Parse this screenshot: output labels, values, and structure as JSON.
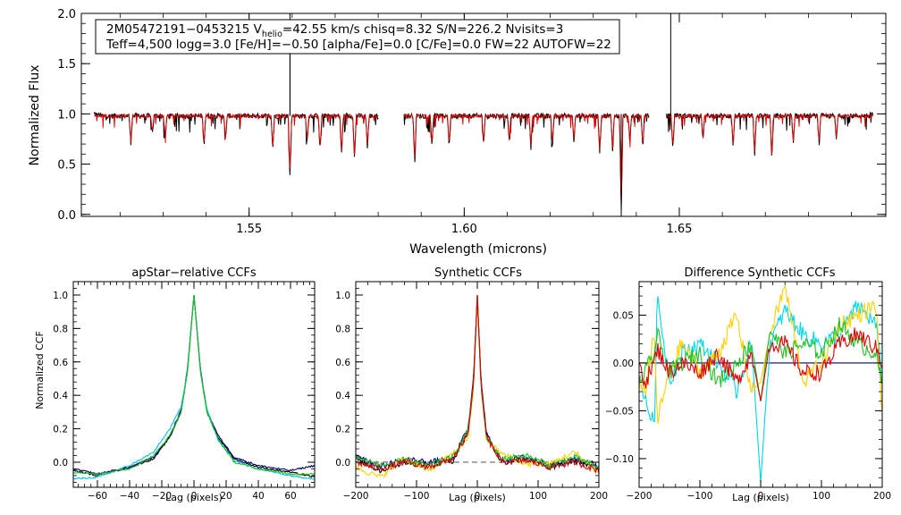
{
  "chart_data": [
    {
      "id": "spectrum",
      "type": "line",
      "title": "",
      "xlabel": "Wavelength (microns)",
      "ylabel": "Normalized Flux",
      "xlim": [
        1.511,
        1.698
      ],
      "ylim": [
        -0.02,
        2.0
      ],
      "x_ticks": [
        "1.55",
        "1.60",
        "1.65"
      ],
      "x_tick_values": [
        1.55,
        1.6,
        1.65
      ],
      "y_ticks": [
        "0.0",
        "0.5",
        "1.0",
        "1.5",
        "2.0"
      ],
      "y_tick_values": [
        0.0,
        0.5,
        1.0,
        1.5,
        2.0
      ],
      "info_lines": [
        {
          "segments": [
            {
              "text": "2M05472191−0453215  V"
            },
            {
              "text": "helio",
              "sub": true
            },
            {
              "text": "=42.55 km/s  chisq=8.32  S/N=226.2  Nvisits=3"
            }
          ]
        },
        {
          "segments": [
            {
              "text": "Teff=4,500 logg=3.0 [Fe/H]=−0.50 [alpha/Fe]=0.0 [C/Fe]=0.0 FW=22 AUTOFW=22"
            }
          ]
        }
      ],
      "chips": [
        [
          1.514,
          1.58
        ],
        [
          1.586,
          1.643
        ],
        [
          1.647,
          1.695
        ]
      ],
      "continuum": 0.98,
      "features": [
        {
          "x": 1.5225,
          "depth": 0.28
        },
        {
          "x": 1.5275,
          "depth": 0.18
        },
        {
          "x": 1.5305,
          "depth": 0.24
        },
        {
          "x": 1.5395,
          "depth": 0.3
        },
        {
          "x": 1.5445,
          "depth": 0.25
        },
        {
          "x": 1.5555,
          "depth": 0.33
        },
        {
          "x": 1.5595,
          "depth": 0.6
        },
        {
          "x": 1.5635,
          "depth": 0.26
        },
        {
          "x": 1.5665,
          "depth": 0.35
        },
        {
          "x": 1.5715,
          "depth": 0.4
        },
        {
          "x": 1.5745,
          "depth": 0.44
        },
        {
          "x": 1.5775,
          "depth": 0.33
        },
        {
          "x": 1.5885,
          "depth": 0.48
        },
        {
          "x": 1.5925,
          "depth": 0.29
        },
        {
          "x": 1.5965,
          "depth": 0.3
        },
        {
          "x": 1.6045,
          "depth": 0.28
        },
        {
          "x": 1.6105,
          "depth": 0.27
        },
        {
          "x": 1.6155,
          "depth": 0.33
        },
        {
          "x": 1.6205,
          "depth": 0.3
        },
        {
          "x": 1.6255,
          "depth": 0.26
        },
        {
          "x": 1.6315,
          "depth": 0.37
        },
        {
          "x": 1.6345,
          "depth": 0.35
        },
        {
          "x": 1.6365,
          "depth": 0.98
        },
        {
          "x": 1.6385,
          "depth": 0.28
        },
        {
          "x": 1.6415,
          "depth": 0.32
        },
        {
          "x": 1.6485,
          "depth": 0.33
        },
        {
          "x": 1.6555,
          "depth": 0.25
        },
        {
          "x": 1.6625,
          "depth": 0.31
        },
        {
          "x": 1.6675,
          "depth": 0.38
        },
        {
          "x": 1.6715,
          "depth": 0.44
        },
        {
          "x": 1.6765,
          "depth": 0.28
        },
        {
          "x": 1.6825,
          "depth": 0.29
        },
        {
          "x": 1.6865,
          "depth": 0.25
        }
      ],
      "spikes": [
        {
          "x": 1.5595,
          "top": 1.62
        },
        {
          "x": 1.5595,
          "top": 2.0
        },
        {
          "x": 1.6365,
          "top": 1.0
        },
        {
          "x": 1.648,
          "top": 2.0
        }
      ],
      "series": [
        {
          "name": "observed",
          "color": "#000000"
        },
        {
          "name": "model",
          "color": "#e00000"
        }
      ]
    },
    {
      "id": "apstar_ccf",
      "type": "line",
      "title": "apStar−relative CCFs",
      "xlabel": "Lag (pixels)",
      "ylabel": "Normalized CCF",
      "xlim": [
        -75,
        75
      ],
      "ylim": [
        -0.15,
        1.08
      ],
      "x_ticks": [
        "−60",
        "−40",
        "−20",
        "0",
        "20",
        "40",
        "60"
      ],
      "x_tick_values": [
        -60,
        -40,
        -20,
        0,
        20,
        40,
        60
      ],
      "y_ticks": [
        "0.0",
        "0.2",
        "0.4",
        "0.6",
        "0.8",
        "1.0"
      ],
      "y_tick_values": [
        0.0,
        0.2,
        0.4,
        0.6,
        0.8,
        1.0
      ],
      "series": [
        {
          "name": "combined",
          "color": "#000000",
          "x": [
            -75,
            -60,
            -40,
            -25,
            -15,
            -8,
            -4,
            0,
            4,
            8,
            15,
            25,
            40,
            60,
            75
          ],
          "y": [
            -0.05,
            -0.08,
            -0.03,
            0.02,
            0.15,
            0.3,
            0.55,
            1.0,
            0.55,
            0.3,
            0.15,
            0.02,
            -0.03,
            -0.06,
            -0.09
          ]
        },
        {
          "name": "visit 1",
          "color": "#000080",
          "x": [
            -75,
            -60,
            -40,
            -25,
            -15,
            -8,
            -4,
            0,
            4,
            8,
            15,
            25,
            40,
            60,
            75
          ],
          "y": [
            -0.04,
            -0.07,
            -0.03,
            0.03,
            0.16,
            0.31,
            0.56,
            1.0,
            0.56,
            0.31,
            0.16,
            0.03,
            -0.02,
            -0.05,
            -0.02
          ]
        },
        {
          "name": "visit 2",
          "color": "#00c0e0",
          "x": [
            -75,
            -60,
            -40,
            -25,
            -15,
            -8,
            -4,
            0,
            4,
            8,
            15,
            25,
            40,
            60,
            75
          ],
          "y": [
            -0.1,
            -0.09,
            -0.02,
            0.06,
            0.2,
            0.33,
            0.55,
            1.0,
            0.54,
            0.32,
            0.13,
            0.01,
            -0.04,
            -0.08,
            -0.1
          ]
        },
        {
          "name": "visit 3",
          "color": "#20c020",
          "x": [
            -75,
            -60,
            -40,
            -25,
            -15,
            -8,
            -4,
            0,
            4,
            8,
            15,
            25,
            40,
            60,
            75
          ],
          "y": [
            -0.06,
            -0.07,
            -0.04,
            0.04,
            0.16,
            0.3,
            0.54,
            1.0,
            0.55,
            0.3,
            0.14,
            0.0,
            -0.04,
            -0.07,
            -0.07
          ]
        }
      ]
    },
    {
      "id": "synthetic_ccf",
      "type": "line",
      "title": "Synthetic CCFs",
      "xlabel": "Lag (pixels)",
      "ylabel": "",
      "xlim": [
        -200,
        200
      ],
      "ylim": [
        -0.15,
        1.08
      ],
      "x_ticks": [
        "−200",
        "−100",
        "0",
        "100",
        "200"
      ],
      "x_tick_values": [
        -200,
        -100,
        0,
        100,
        200
      ],
      "y_ticks": [
        "0.0",
        "0.2",
        "0.4",
        "0.6",
        "0.8",
        "1.0"
      ],
      "y_tick_values": [
        0.0,
        0.2,
        0.4,
        0.6,
        0.8,
        1.0
      ],
      "zero_line_dashed": true,
      "series": [
        {
          "name": "combined",
          "color": "#000000",
          "x": [
            -200,
            -160,
            -120,
            -80,
            -40,
            -15,
            -6,
            0,
            6,
            15,
            40,
            80,
            120,
            160,
            200
          ],
          "y": [
            0.02,
            -0.05,
            0.0,
            -0.02,
            0.01,
            0.18,
            0.5,
            1.0,
            0.48,
            0.16,
            0.0,
            0.02,
            -0.03,
            0.01,
            -0.04
          ]
        },
        {
          "name": "visit 1",
          "color": "#000080",
          "x": [
            -200,
            -160,
            -120,
            -80,
            -40,
            -15,
            -6,
            0,
            6,
            15,
            40,
            80,
            120,
            160,
            200
          ],
          "y": [
            0.05,
            -0.03,
            0.02,
            0.0,
            0.02,
            0.2,
            0.52,
            1.0,
            0.5,
            0.17,
            0.01,
            0.03,
            -0.02,
            0.02,
            -0.02
          ]
        },
        {
          "name": "visit 2",
          "color": "#ffd000",
          "x": [
            -200,
            -160,
            -120,
            -80,
            -40,
            -15,
            -6,
            0,
            6,
            15,
            40,
            80,
            120,
            160,
            200
          ],
          "y": [
            -0.03,
            -0.09,
            0.03,
            -0.05,
            0.05,
            0.15,
            0.45,
            1.0,
            0.45,
            0.13,
            0.05,
            -0.01,
            -0.01,
            0.06,
            -0.07
          ]
        },
        {
          "name": "visit 3",
          "color": "#20c020",
          "x": [
            -200,
            -160,
            -120,
            -80,
            -40,
            -15,
            -6,
            0,
            6,
            15,
            40,
            80,
            120,
            160,
            200
          ],
          "y": [
            0.03,
            -0.02,
            0.01,
            -0.02,
            0.03,
            0.19,
            0.49,
            1.0,
            0.47,
            0.15,
            0.02,
            0.04,
            -0.02,
            0.03,
            -0.03
          ]
        },
        {
          "name": "visit 4",
          "color": "#e00000",
          "x": [
            -200,
            -160,
            -120,
            -80,
            -40,
            -15,
            -6,
            0,
            6,
            15,
            40,
            80,
            120,
            160,
            200
          ],
          "y": [
            0.0,
            -0.04,
            0.0,
            -0.03,
            0.02,
            0.17,
            0.48,
            1.0,
            0.47,
            0.15,
            0.0,
            0.01,
            -0.03,
            0.0,
            -0.05
          ]
        }
      ]
    },
    {
      "id": "difference_ccf",
      "type": "line",
      "title": "Difference Synthetic CCFs",
      "xlabel": "Lag (pixels)",
      "ylabel": "",
      "xlim": [
        -200,
        200
      ],
      "ylim": [
        -0.13,
        0.085
      ],
      "x_ticks": [
        "−200",
        "−100",
        "0",
        "100",
        "200"
      ],
      "x_tick_values": [
        -200,
        -100,
        0,
        100,
        200
      ],
      "y_ticks": [
        "−0.10",
        "−0.05",
        "0.00",
        "0.05"
      ],
      "y_tick_values": [
        -0.1,
        -0.05,
        0.0,
        0.05
      ],
      "zero_line_color": "#000080",
      "series": [
        {
          "name": "visit 1",
          "color": "#00d8e8",
          "x": [
            -200,
            -190,
            -175,
            -170,
            -150,
            -130,
            -100,
            -70,
            -40,
            -15,
            0,
            15,
            40,
            70,
            100,
            130,
            160,
            190,
            200
          ],
          "y": [
            -0.01,
            -0.04,
            -0.065,
            0.07,
            -0.02,
            0.01,
            0.02,
            0.0,
            -0.03,
            0.02,
            -0.125,
            0.02,
            0.055,
            0.03,
            0.02,
            0.03,
            0.06,
            0.04,
            -0.02
          ]
        },
        {
          "name": "visit 2",
          "color": "#ffd000",
          "x": [
            -200,
            -190,
            -175,
            -170,
            -150,
            -130,
            -100,
            -70,
            -40,
            -15,
            0,
            15,
            40,
            70,
            100,
            130,
            160,
            190,
            200
          ],
          "y": [
            -0.02,
            -0.03,
            0.03,
            -0.06,
            -0.01,
            0.02,
            -0.01,
            0.01,
            0.05,
            -0.03,
            -0.02,
            0.03,
            0.08,
            -0.02,
            0.0,
            0.04,
            0.05,
            0.06,
            -0.06
          ]
        },
        {
          "name": "visit 3",
          "color": "#20c020",
          "x": [
            -200,
            -190,
            -175,
            -170,
            -150,
            -130,
            -100,
            -70,
            -40,
            -15,
            0,
            15,
            40,
            70,
            100,
            130,
            160,
            190,
            200
          ],
          "y": [
            -0.02,
            -0.01,
            0.01,
            0.03,
            -0.01,
            0.0,
            0.01,
            -0.02,
            0.0,
            0.02,
            -0.04,
            0.035,
            0.01,
            0.02,
            0.01,
            0.04,
            0.02,
            0.01,
            -0.025
          ]
        },
        {
          "name": "visit 4",
          "color": "#e00000",
          "x": [
            -200,
            -190,
            -175,
            -170,
            -150,
            -130,
            -100,
            -70,
            -40,
            -15,
            0,
            15,
            40,
            70,
            100,
            130,
            160,
            190,
            200
          ],
          "y": [
            0.0,
            -0.02,
            0.0,
            0.015,
            -0.01,
            0.0,
            -0.01,
            0.01,
            -0.02,
            0.01,
            -0.04,
            0.02,
            0.02,
            -0.01,
            -0.01,
            0.02,
            0.03,
            0.015,
            0.0
          ]
        }
      ]
    }
  ]
}
